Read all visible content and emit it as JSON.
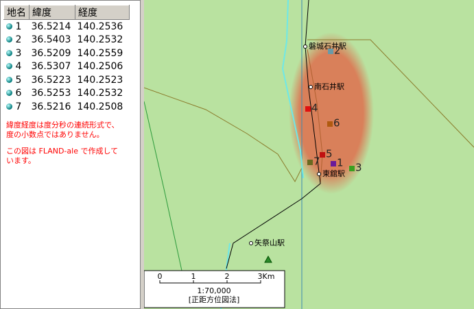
{
  "table": {
    "headers": [
      "地名",
      "緯度",
      "経度"
    ],
    "rows": [
      [
        "1",
        "36.5214",
        "140.2536"
      ],
      [
        "2",
        "36.5403",
        "140.2532"
      ],
      [
        "3",
        "36.5209",
        "140.2559"
      ],
      [
        "4",
        "36.5307",
        "140.2506"
      ],
      [
        "5",
        "36.5223",
        "140.2523"
      ],
      [
        "6",
        "36.5253",
        "140.2532"
      ],
      [
        "7",
        "36.5216",
        "140.2508"
      ]
    ]
  },
  "notes": [
    [
      "緯度経度は度分秒の連続形式で、",
      "度の小数点ではありません。"
    ],
    [
      "この図は FLAND-ale で作成して",
      "います。"
    ]
  ],
  "map": {
    "stations": [
      "磐城石井駅",
      "南石井駅",
      "東舘駅",
      "矢祭山駅"
    ],
    "points": [
      "1",
      "2",
      "3",
      "4",
      "5",
      "6",
      "7"
    ]
  },
  "scale": {
    "labels": [
      "0",
      "1",
      "2",
      "3Km"
    ],
    "ratio": "1:70,000",
    "projection": "[正距方位図法]"
  }
}
